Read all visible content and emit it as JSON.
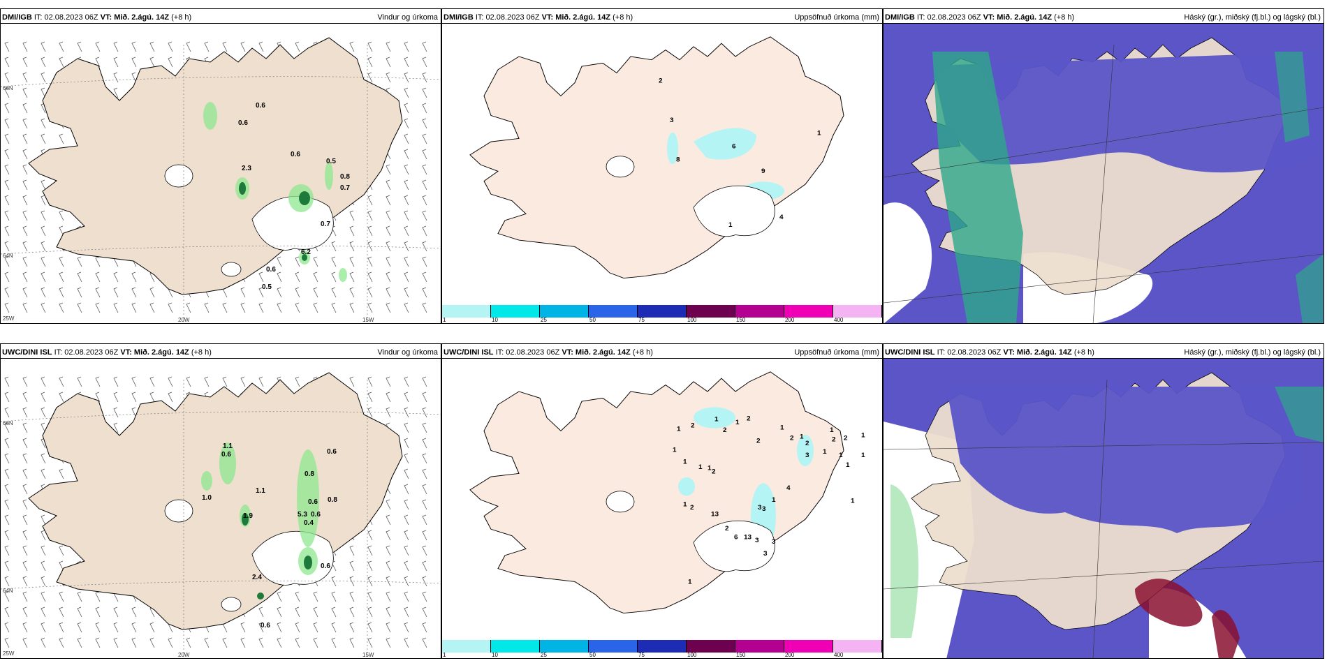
{
  "panels": {
    "p1": {
      "model": "DMI/IGB",
      "it": "IT: 02.08.2023 06Z",
      "vt_label": "VT:",
      "vt_value": "Mið. 2.ágú. 14Z",
      "lead": "(+8 h)",
      "title": "Vindur og úrkoma"
    },
    "p2": {
      "model": "DMI/IGB",
      "it": "IT: 02.08.2023 06Z",
      "vt_label": "VT:",
      "vt_value": "Mið. 2.ágú. 14Z",
      "lead": "(+8 h)",
      "title": "Uppsöfnuð úrkoma (mm)"
    },
    "p3": {
      "model": "DMI/IGB",
      "it": "IT: 02.08.2023 06Z",
      "vt_label": "VT:",
      "vt_value": "Mið. 2.ágú. 14Z",
      "lead": "(+8 h)",
      "title": "Háský (gr.), miðský (fj.bl.) og lágský (bl.)"
    },
    "p4": {
      "model": "UWC/DINI ISL",
      "it": "IT: 02.08.2023 06Z",
      "vt_label": "VT:",
      "vt_value": "Mið. 2.ágú. 14Z",
      "lead": "(+8 h)",
      "title": "Vindur og úrkoma"
    },
    "p5": {
      "model": "UWC/DINI ISL",
      "it": "IT: 02.08.2023 06Z",
      "vt_label": "VT:",
      "vt_value": "Mið. 2.ágú. 14Z",
      "lead": "(+8 h)",
      "title": "Uppsöfnuð úrkoma (mm)"
    },
    "p6": {
      "model": "UWC/DINI ISL",
      "it": "IT: 02.08.2023 06Z",
      "vt_label": "VT:",
      "vt_value": "Mið. 2.ágú. 14Z",
      "lead": "(+8 h)",
      "title": "Háský (gr.), miðský (fj.bl.) og lágský (bl.)"
    }
  },
  "axis": {
    "lat66": "66N",
    "lat64": "64N",
    "lon25": "25W",
    "lon20": "20W",
    "lon15": "15W"
  },
  "colorbar": {
    "labels": [
      "1",
      "10",
      "25",
      "50",
      "75",
      "100",
      "150",
      "200",
      "400"
    ],
    "colors": [
      "#b4f4f4",
      "#00e8e8",
      "#00b4e6",
      "#2a64e8",
      "#1c2cb4",
      "#6e0050",
      "#b40090",
      "#f000b4",
      "#f4b4f4"
    ]
  },
  "colors": {
    "land": "#eedfcf",
    "land_light": "#faeadf",
    "green": "#8fe88f",
    "blue": "#5b55c8",
    "teal": "#2ea88a",
    "red": "#8a1030"
  },
  "wind_labels_top": [
    "0.6",
    "0.6",
    "0.6",
    "2.3",
    "0.5",
    "0.8",
    "0.7",
    "0.7",
    "6.2",
    "0.6",
    "0.5"
  ],
  "wind_labels_bottom": [
    "1.1",
    "0.6",
    "0.6",
    "0.8",
    "1.0",
    "1.1",
    "1.9",
    "0.6",
    "0.8",
    "5.3",
    "0.6",
    "0.4",
    "0.6",
    "2.4",
    "0.6"
  ],
  "precip_labels_top": [
    "2",
    "3",
    "8",
    "6",
    "9",
    "1",
    "1",
    "4"
  ],
  "precip_labels_bottom": [
    "1",
    "2",
    "1",
    "2",
    "1",
    "2",
    "2",
    "1",
    "2",
    "1",
    "2",
    "2",
    "2",
    "1",
    "1",
    "3",
    "1",
    "1",
    "1",
    "1",
    "1",
    "2",
    "1",
    "1",
    "1",
    "4",
    "1",
    "3",
    "3",
    "1",
    "1",
    "2",
    "13",
    "2",
    "6",
    "13",
    "3",
    "3",
    "3",
    "1"
  ]
}
